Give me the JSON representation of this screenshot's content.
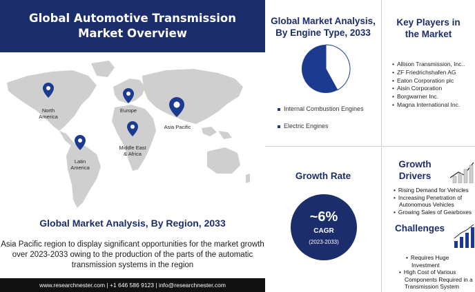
{
  "header": {
    "title_line1": "Global Automotive Transmission",
    "title_line2": "Market Overview"
  },
  "map": {
    "regions": [
      {
        "label_line1": "North",
        "label_line2": "America"
      },
      {
        "label_line1": "Europe",
        "label_line2": ""
      },
      {
        "label_line1": "Asia Pacific",
        "label_line2": ""
      },
      {
        "label_line1": "Middle East",
        "label_line2": "& Africa"
      },
      {
        "label_line1": "Latin",
        "label_line2": "America"
      }
    ],
    "land_color": "#cfcfcf",
    "pin_color": "#1c3a8f"
  },
  "region_section": {
    "title": "Global Market Analysis, By Region, 2033",
    "desc_line1": "Asia Pacific region to display significant opportunities for the market growth",
    "desc_line2": "over 2023-2033  owing to the production of the parts of the automatic",
    "desc_line3": "transmission systems in the region"
  },
  "footer": {
    "text": "www.researchnester.com  | +1 646 586 9123 | info@researchnester.com"
  },
  "engine_section": {
    "title_line1": "Global Market Analysis,",
    "title_line2": "By Engine Type, 2033",
    "legend": [
      "Internal Combustion Engines",
      "Electric Engines"
    ],
    "pie_share_fraction": 0.42,
    "pie_color": "#1c3a8f"
  },
  "key_players": {
    "title_line1": "Key Players in",
    "title_line2": "the Market",
    "items": [
      "Allison Transmission, Inc..",
      "ZF Friedrichshafen  AG",
      "Eaton Corporation plc",
      "Aisin Corporation",
      "Borgwarner  Inc.",
      "Magna International  Inc."
    ]
  },
  "growth_rate": {
    "title": "Growth Rate",
    "value": "~6%",
    "label": "CAGR",
    "period": "(2023-2033)",
    "accent": "#1c2d6b"
  },
  "growth_drivers": {
    "title_line1": "Growth",
    "title_line2": "Drivers",
    "items": [
      "Rising Demand for Vehicles",
      "Increasing Penetration of Autonomous  Vehicles",
      "Growing Sales of Gearboxes"
    ]
  },
  "challenges": {
    "title": "Challenges",
    "items": [
      "Requires Huge Investment",
      "High Cost of Various Components Required in a Transmission System"
    ]
  }
}
